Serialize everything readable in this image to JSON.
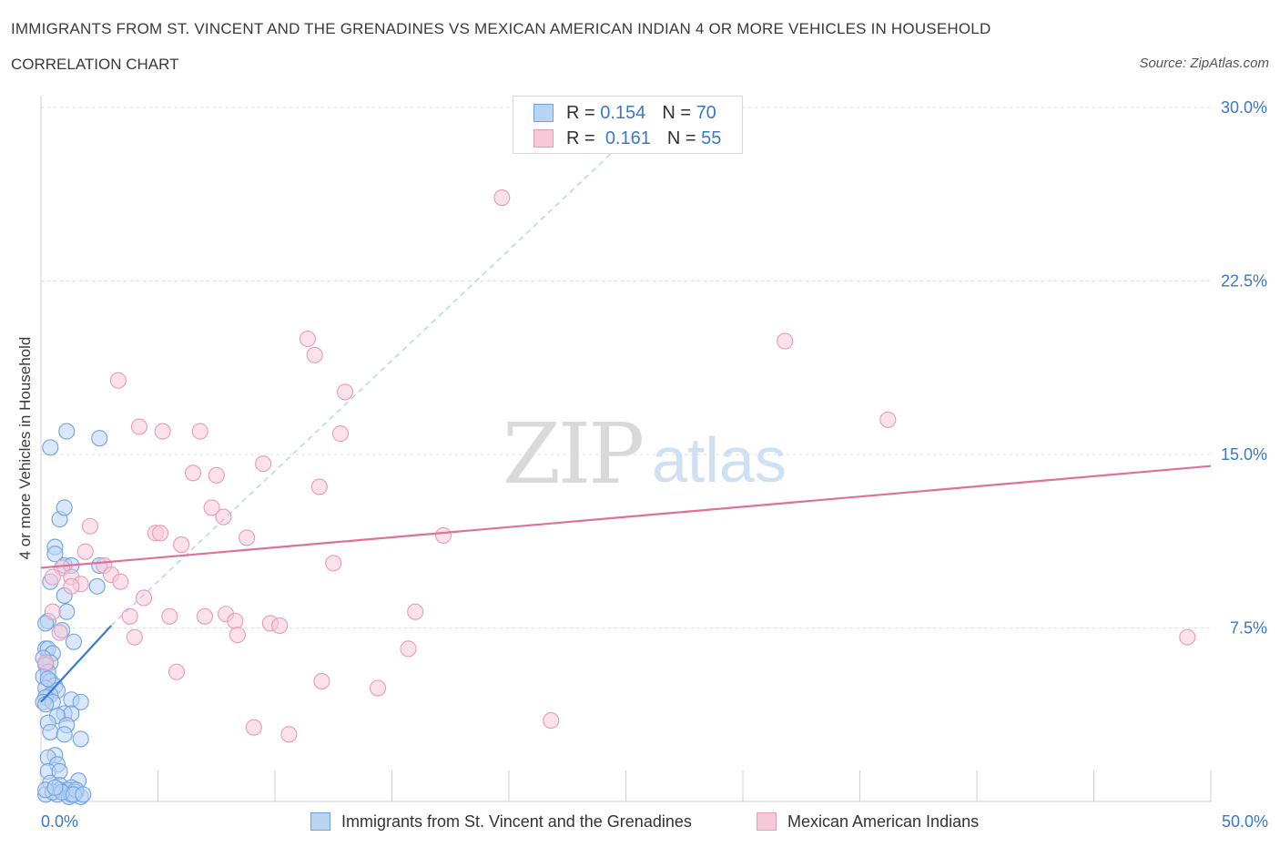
{
  "header": {
    "title": "IMMIGRANTS FROM ST. VINCENT AND THE GRENADINES VS MEXICAN AMERICAN INDIAN 4 OR MORE VEHICLES IN HOUSEHOLD",
    "subtitle": "CORRELATION CHART",
    "source": "Source: ZipAtlas.com"
  },
  "watermark": {
    "zip": "ZIP",
    "atlas": "atlas"
  },
  "legend": {
    "r_label": "R =",
    "n_label": "N =",
    "series1": {
      "r": "0.154",
      "n": "70"
    },
    "series2": {
      "r": "0.161",
      "n": "55"
    }
  },
  "colors": {
    "blue_fill": "#b9d4f3",
    "blue_stroke": "#6fa3e0",
    "blue_line": "#3a78d4",
    "pink_fill": "#f7c8d8",
    "pink_stroke": "#e99ab6",
    "pink_line": "#e0709a",
    "tick_text": "#3a78c9"
  },
  "chart_data": {
    "type": "scatter",
    "ylabel": "4 or more Vehicles in Household",
    "xlim": [
      0,
      50
    ],
    "ylim": [
      0,
      30
    ],
    "x_tick_labels": [
      "0.0%",
      "50.0%"
    ],
    "y_ticks": [
      7.5,
      15.0,
      22.5,
      30.0
    ],
    "y_tick_labels": [
      "7.5%",
      "15.0%",
      "22.5%",
      "30.0%"
    ],
    "series": [
      {
        "name": "Immigrants from St. Vincent and the Grenadines",
        "r": 0.154,
        "n": 70,
        "trend_solid": [
          [
            0,
            4.3
          ],
          [
            3.0,
            7.6
          ]
        ],
        "trend_dashed": [
          [
            3.0,
            7.6
          ],
          [
            25.3,
            28.9
          ]
        ],
        "points": [
          [
            0.4,
            15.3
          ],
          [
            1.1,
            16.0
          ],
          [
            2.5,
            15.7
          ],
          [
            0.8,
            12.2
          ],
          [
            1.0,
            12.7
          ],
          [
            0.6,
            11.0
          ],
          [
            0.6,
            10.7
          ],
          [
            1.0,
            10.2
          ],
          [
            1.3,
            10.2
          ],
          [
            2.5,
            10.2
          ],
          [
            0.4,
            9.5
          ],
          [
            2.4,
            9.3
          ],
          [
            1.0,
            8.9
          ],
          [
            1.1,
            8.2
          ],
          [
            0.3,
            7.8
          ],
          [
            0.2,
            7.7
          ],
          [
            0.9,
            7.4
          ],
          [
            1.4,
            6.9
          ],
          [
            0.2,
            6.6
          ],
          [
            0.3,
            6.6
          ],
          [
            0.5,
            6.4
          ],
          [
            0.1,
            6.2
          ],
          [
            0.4,
            6.0
          ],
          [
            0.2,
            5.9
          ],
          [
            0.3,
            5.6
          ],
          [
            0.1,
            5.4
          ],
          [
            0.4,
            5.2
          ],
          [
            0.6,
            5.0
          ],
          [
            0.2,
            4.9
          ],
          [
            0.7,
            4.8
          ],
          [
            0.4,
            4.6
          ],
          [
            0.2,
            4.5
          ],
          [
            0.1,
            4.3
          ],
          [
            0.5,
            4.3
          ],
          [
            1.3,
            4.4
          ],
          [
            1.7,
            4.3
          ],
          [
            0.2,
            4.2
          ],
          [
            1.0,
            3.8
          ],
          [
            1.3,
            3.8
          ],
          [
            0.7,
            3.7
          ],
          [
            0.3,
            3.4
          ],
          [
            1.1,
            3.3
          ],
          [
            0.4,
            3.0
          ],
          [
            1.0,
            2.9
          ],
          [
            1.7,
            2.7
          ],
          [
            0.6,
            2.0
          ],
          [
            0.3,
            1.9
          ],
          [
            0.7,
            1.6
          ],
          [
            0.3,
            1.3
          ],
          [
            0.8,
            1.3
          ],
          [
            1.6,
            0.9
          ],
          [
            0.4,
            0.8
          ],
          [
            0.8,
            0.7
          ],
          [
            1.3,
            0.6
          ],
          [
            1.1,
            0.5
          ],
          [
            0.8,
            0.5
          ],
          [
            1.5,
            0.4
          ],
          [
            0.2,
            0.3
          ],
          [
            0.7,
            0.3
          ],
          [
            1.7,
            0.2
          ],
          [
            1.2,
            0.2
          ],
          [
            1.3,
            0.3
          ],
          [
            0.5,
            0.4
          ],
          [
            0.9,
            0.4
          ],
          [
            0.2,
            0.5
          ],
          [
            1.5,
            0.5
          ],
          [
            0.6,
            0.6
          ],
          [
            1.4,
            0.3
          ],
          [
            0.3,
            5.3
          ],
          [
            1.8,
            0.3
          ]
        ]
      },
      {
        "name": "Mexican American Indians",
        "r": 0.161,
        "n": 55,
        "trend_solid": [
          [
            0,
            10.1
          ],
          [
            50,
            14.5
          ]
        ],
        "points": [
          [
            19.7,
            26.1
          ],
          [
            11.4,
            20.0
          ],
          [
            11.7,
            19.3
          ],
          [
            31.8,
            19.9
          ],
          [
            3.3,
            18.2
          ],
          [
            13.0,
            17.7
          ],
          [
            4.2,
            16.2
          ],
          [
            5.2,
            16.0
          ],
          [
            6.8,
            16.0
          ],
          [
            12.8,
            15.9
          ],
          [
            36.2,
            16.5
          ],
          [
            9.5,
            14.6
          ],
          [
            6.5,
            14.2
          ],
          [
            7.5,
            14.1
          ],
          [
            11.9,
            13.6
          ],
          [
            7.3,
            12.7
          ],
          [
            7.8,
            12.3
          ],
          [
            2.1,
            11.9
          ],
          [
            4.9,
            11.6
          ],
          [
            5.1,
            11.6
          ],
          [
            17.2,
            11.5
          ],
          [
            8.8,
            11.4
          ],
          [
            6.0,
            11.1
          ],
          [
            1.9,
            10.8
          ],
          [
            12.5,
            10.3
          ],
          [
            2.7,
            10.2
          ],
          [
            0.9,
            10.1
          ],
          [
            1.3,
            9.7
          ],
          [
            3.0,
            9.8
          ],
          [
            0.5,
            9.7
          ],
          [
            1.7,
            9.4
          ],
          [
            1.3,
            9.3
          ],
          [
            3.4,
            9.5
          ],
          [
            4.4,
            8.8
          ],
          [
            0.5,
            8.2
          ],
          [
            16.0,
            8.2
          ],
          [
            5.5,
            8.0
          ],
          [
            7.0,
            8.0
          ],
          [
            3.8,
            8.0
          ],
          [
            7.9,
            8.1
          ],
          [
            8.3,
            7.8
          ],
          [
            9.8,
            7.7
          ],
          [
            10.2,
            7.6
          ],
          [
            0.8,
            7.3
          ],
          [
            4.0,
            7.1
          ],
          [
            8.4,
            7.2
          ],
          [
            15.7,
            6.6
          ],
          [
            49.0,
            7.1
          ],
          [
            5.8,
            5.6
          ],
          [
            12.0,
            5.2
          ],
          [
            14.4,
            4.9
          ],
          [
            21.8,
            3.5
          ],
          [
            9.1,
            3.2
          ],
          [
            10.6,
            2.9
          ],
          [
            0.2,
            6.0
          ]
        ]
      }
    ]
  }
}
